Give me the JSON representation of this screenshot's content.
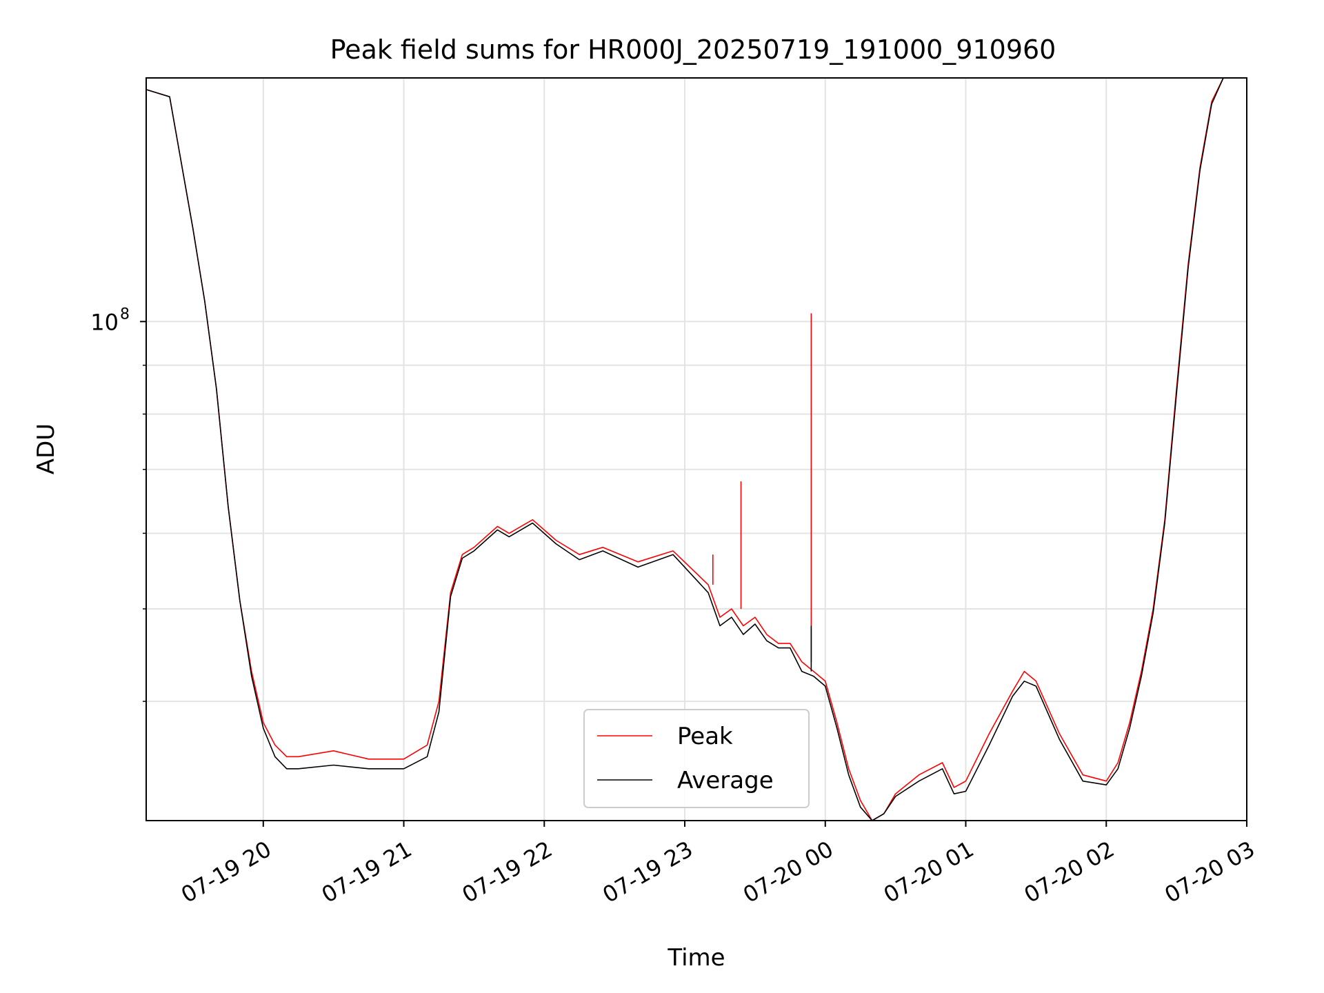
{
  "chart_data": {
    "type": "line",
    "title": "Peak field sums for HR000J_20250719_191000_910960",
    "xlabel": "Time",
    "ylabel": "ADU",
    "y_scale": "log",
    "ylim": [
      30000000,
      180000000
    ],
    "xlim": [
      "2025-07-19 19:10",
      "2025-07-20 03:00"
    ],
    "grid": true,
    "legend_position": "lower center",
    "x_tick_labels": [
      "07-19 20",
      "07-19 21",
      "07-19 22",
      "07-19 23",
      "07-20 00",
      "07-20 01",
      "07-20 02",
      "07-20 03"
    ],
    "x_ticks": [
      "2025-07-19 20:00",
      "2025-07-19 21:00",
      "2025-07-19 22:00",
      "2025-07-19 23:00",
      "2025-07-20 00:00",
      "2025-07-20 01:00",
      "2025-07-20 02:00",
      "2025-07-20 03:00"
    ],
    "y_tick_labels": [
      {
        "base": "10",
        "exp": "8",
        "value": 100000000
      }
    ],
    "y_minor_ticks": [
      30000000,
      40000000,
      50000000,
      60000000,
      70000000,
      80000000,
      90000000,
      200000000
    ],
    "series": [
      {
        "name": "Peak",
        "color": "#ff0000",
        "x": [
          "2025-07-19 19:10",
          "2025-07-19 19:20",
          "2025-07-19 19:30",
          "2025-07-19 19:35",
          "2025-07-19 19:40",
          "2025-07-19 19:45",
          "2025-07-19 19:50",
          "2025-07-19 19:55",
          "2025-07-19 20:00",
          "2025-07-19 20:05",
          "2025-07-19 20:10",
          "2025-07-19 20:15",
          "2025-07-19 20:30",
          "2025-07-19 20:45",
          "2025-07-19 21:00",
          "2025-07-19 21:10",
          "2025-07-19 21:15",
          "2025-07-19 21:20",
          "2025-07-19 21:25",
          "2025-07-19 21:30",
          "2025-07-19 21:40",
          "2025-07-19 21:45",
          "2025-07-19 21:55",
          "2025-07-19 22:05",
          "2025-07-19 22:15",
          "2025-07-19 22:25",
          "2025-07-19 22:40",
          "2025-07-19 22:55",
          "2025-07-19 23:10",
          "2025-07-19 23:15",
          "2025-07-19 23:20",
          "2025-07-19 23:25",
          "2025-07-19 23:30",
          "2025-07-19 23:35",
          "2025-07-19 23:40",
          "2025-07-19 23:45",
          "2025-07-19 23:50",
          "2025-07-19 23:55",
          "2025-07-20 00:00",
          "2025-07-20 00:05",
          "2025-07-20 00:10",
          "2025-07-20 00:15",
          "2025-07-20 00:20",
          "2025-07-20 00:25",
          "2025-07-20 00:30",
          "2025-07-20 00:40",
          "2025-07-20 00:50",
          "2025-07-20 00:55",
          "2025-07-20 01:00",
          "2025-07-20 01:10",
          "2025-07-20 01:20",
          "2025-07-20 01:25",
          "2025-07-20 01:30",
          "2025-07-20 01:40",
          "2025-07-20 01:50",
          "2025-07-20 02:00",
          "2025-07-20 02:05",
          "2025-07-20 02:10",
          "2025-07-20 02:15",
          "2025-07-20 02:20",
          "2025-07-20 02:25",
          "2025-07-20 02:30",
          "2025-07-20 02:35",
          "2025-07-20 02:40",
          "2025-07-20 02:45",
          "2025-07-20 02:50"
        ],
        "values": [
          175000000,
          172000000,
          125000000,
          105000000,
          85000000,
          64000000,
          51000000,
          43000000,
          38000000,
          36000000,
          35000000,
          35000000,
          35500000,
          34800000,
          34800000,
          36000000,
          40000000,
          52000000,
          57000000,
          58000000,
          61000000,
          60000000,
          62000000,
          59000000,
          57000000,
          58000000,
          56000000,
          57500000,
          53000000,
          49000000,
          50000000,
          48000000,
          49000000,
          47000000,
          46000000,
          46000000,
          44000000,
          43000000,
          42000000,
          38000000,
          34000000,
          31500000,
          30000000,
          30500000,
          32000000,
          33500000,
          34500000,
          32500000,
          33000000,
          37000000,
          41000000,
          43000000,
          42000000,
          37000000,
          33500000,
          33000000,
          34500000,
          38000000,
          43000000,
          50000000,
          62000000,
          85000000,
          115000000,
          145000000,
          170000000,
          180000000
        ]
      },
      {
        "name": "Average",
        "color": "#000000",
        "x": [
          "2025-07-19 19:10",
          "2025-07-19 19:20",
          "2025-07-19 19:30",
          "2025-07-19 19:35",
          "2025-07-19 19:40",
          "2025-07-19 19:45",
          "2025-07-19 19:50",
          "2025-07-19 19:55",
          "2025-07-19 20:00",
          "2025-07-19 20:05",
          "2025-07-19 20:10",
          "2025-07-19 20:15",
          "2025-07-19 20:30",
          "2025-07-19 20:45",
          "2025-07-19 21:00",
          "2025-07-19 21:10",
          "2025-07-19 21:15",
          "2025-07-19 21:20",
          "2025-07-19 21:25",
          "2025-07-19 21:30",
          "2025-07-19 21:40",
          "2025-07-19 21:45",
          "2025-07-19 21:55",
          "2025-07-19 22:05",
          "2025-07-19 22:15",
          "2025-07-19 22:25",
          "2025-07-19 22:40",
          "2025-07-19 22:55",
          "2025-07-19 23:10",
          "2025-07-19 23:15",
          "2025-07-19 23:20",
          "2025-07-19 23:25",
          "2025-07-19 23:30",
          "2025-07-19 23:35",
          "2025-07-19 23:40",
          "2025-07-19 23:45",
          "2025-07-19 23:50",
          "2025-07-19 23:55",
          "2025-07-20 00:00",
          "2025-07-20 00:05",
          "2025-07-20 00:10",
          "2025-07-20 00:15",
          "2025-07-20 00:20",
          "2025-07-20 00:25",
          "2025-07-20 00:30",
          "2025-07-20 00:40",
          "2025-07-20 00:50",
          "2025-07-20 00:55",
          "2025-07-20 01:00",
          "2025-07-20 01:10",
          "2025-07-20 01:20",
          "2025-07-20 01:25",
          "2025-07-20 01:30",
          "2025-07-20 01:40",
          "2025-07-20 01:50",
          "2025-07-20 02:00",
          "2025-07-20 02:05",
          "2025-07-20 02:10",
          "2025-07-20 02:15",
          "2025-07-20 02:20",
          "2025-07-20 02:25",
          "2025-07-20 02:30",
          "2025-07-20 02:35",
          "2025-07-20 02:40",
          "2025-07-20 02:45",
          "2025-07-20 02:50"
        ],
        "values": [
          175000000,
          172000000,
          125000000,
          105000000,
          85000000,
          64000000,
          51000000,
          42500000,
          37500000,
          35000000,
          34000000,
          34000000,
          34300000,
          34000000,
          34000000,
          35000000,
          39000000,
          51500000,
          56500000,
          57500000,
          60500000,
          59500000,
          61500000,
          58500000,
          56300000,
          57500000,
          55300000,
          57000000,
          52000000,
          48000000,
          49000000,
          47000000,
          48200000,
          46300000,
          45500000,
          45500000,
          43000000,
          42500000,
          41500000,
          37500000,
          33500000,
          31000000,
          29900000,
          30500000,
          31800000,
          33000000,
          34000000,
          32000000,
          32200000,
          36000000,
          40500000,
          42000000,
          41500000,
          36500000,
          33000000,
          32700000,
          34000000,
          37500000,
          42500000,
          49500000,
          61500000,
          84000000,
          114000000,
          144000000,
          169000000,
          180000000
        ]
      }
    ],
    "spikes": [
      {
        "series": "Peak",
        "x": "2025-07-19 23:12",
        "value": 57000000
      },
      {
        "series": "Peak",
        "x": "2025-07-19 23:24",
        "value": 68000000
      },
      {
        "series": "Peak",
        "x": "2025-07-19 23:54",
        "value": 102000000
      },
      {
        "series": "Average",
        "x": "2025-07-19 23:24",
        "value": 49000000
      },
      {
        "series": "Average",
        "x": "2025-07-19 23:54",
        "value": 48000000
      }
    ]
  }
}
